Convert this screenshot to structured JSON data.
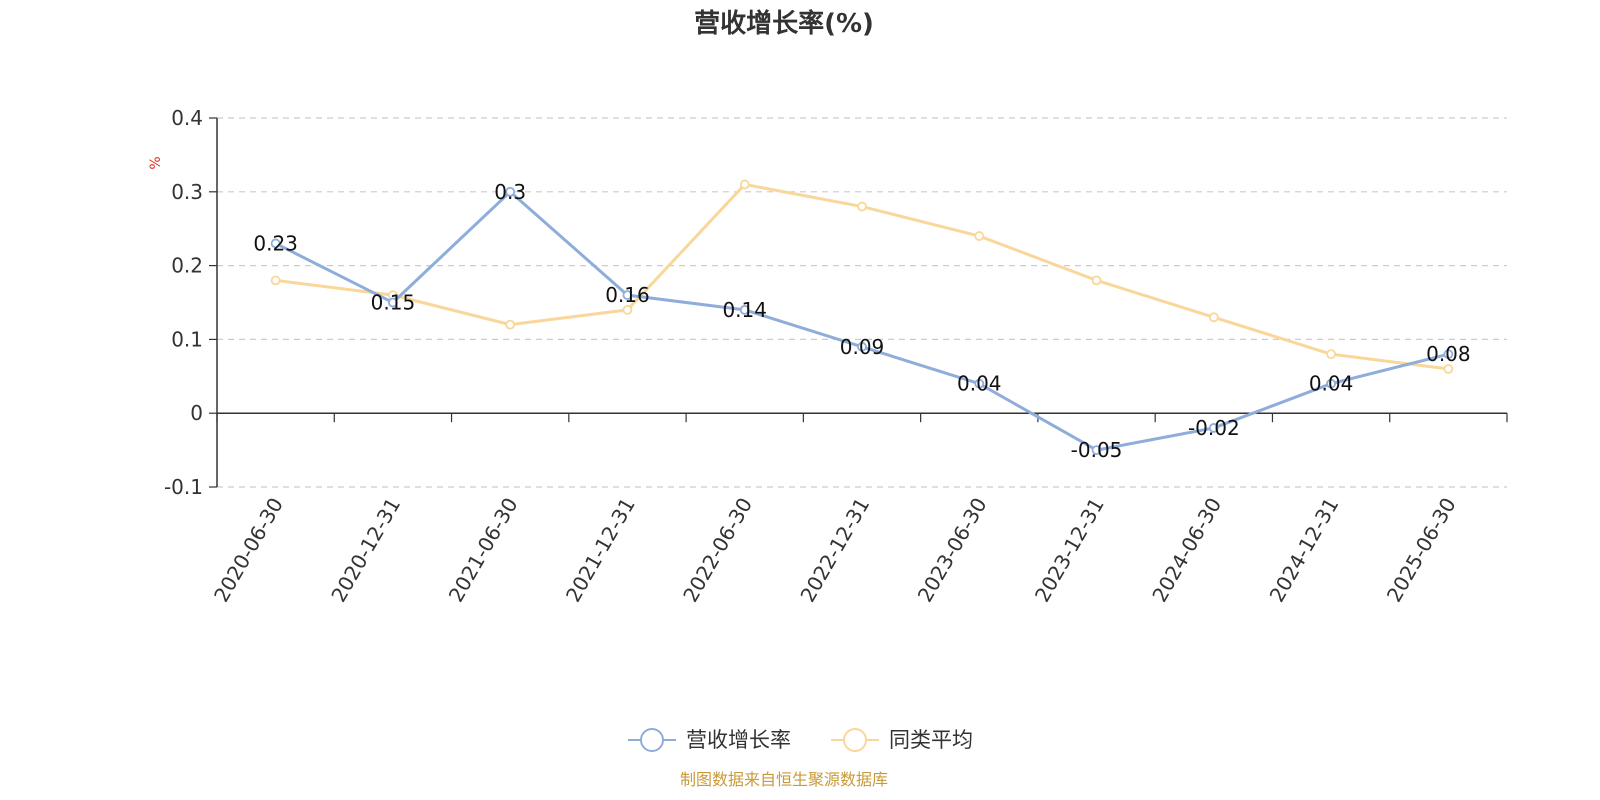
{
  "chart_data": {
    "type": "line",
    "title": "营收增长率(%)",
    "ylabel": "%",
    "categories": [
      "2020-06-30",
      "2020-12-31",
      "2021-06-30",
      "2021-12-31",
      "2022-06-30",
      "2022-12-31",
      "2023-06-30",
      "2023-12-31",
      "2024-06-30",
      "2024-12-31",
      "2025-06-30"
    ],
    "ylim": [
      -0.1,
      0.4
    ],
    "yticks": [
      "0.4",
      "0.3",
      "0.2",
      "0.1",
      "0",
      "-0.1"
    ],
    "grid": true,
    "legend_position": "bottom-center",
    "series": [
      {
        "name": "营收增长率",
        "color": "#8eaddb",
        "values": [
          0.23,
          0.15,
          0.3,
          0.16,
          0.14,
          0.09,
          0.04,
          -0.05,
          -0.02,
          0.04,
          0.08
        ],
        "labels": [
          "0.23",
          "0.15",
          "0.3",
          "0.16",
          "0.14",
          "0.09",
          "0.04",
          "-0.05",
          "-0.02",
          "0.04",
          "0.08"
        ]
      },
      {
        "name": "同类平均",
        "color": "#f9d79a",
        "values": [
          0.18,
          0.16,
          0.12,
          0.14,
          0.31,
          0.28,
          0.24,
          0.18,
          0.13,
          0.08,
          0.06
        ]
      }
    ]
  },
  "source": "制图数据来自恒生聚源数据库"
}
